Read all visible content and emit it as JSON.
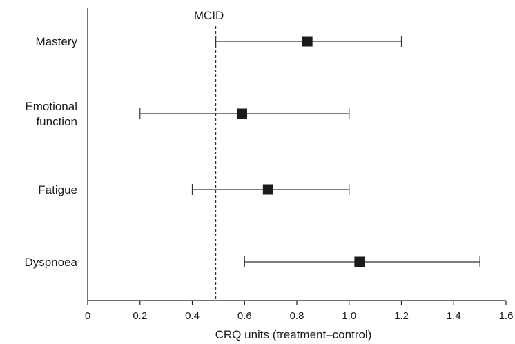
{
  "chart_data": {
    "type": "scatter",
    "subtype": "forest-plot",
    "title": "",
    "xlabel": "CRQ units (treatment–control)",
    "ylabel": "",
    "xlim": [
      0,
      1.6
    ],
    "xticks": [
      "0",
      "0.2",
      "0.4",
      "0.6",
      "0.8",
      "1.0",
      "1.2",
      "1.4",
      "1.6"
    ],
    "grid": false,
    "reference_line": {
      "label": "MCID",
      "x": 0.49,
      "style": "dashed"
    },
    "categories": [
      {
        "lines": [
          "Mastery"
        ],
        "estimate": 0.84,
        "ci_low": 0.49,
        "ci_high": 1.2
      },
      {
        "lines": [
          "Emotional",
          "function"
        ],
        "estimate": 0.59,
        "ci_low": 0.2,
        "ci_high": 1.0
      },
      {
        "lines": [
          "Fatigue"
        ],
        "estimate": 0.69,
        "ci_low": 0.4,
        "ci_high": 1.0
      },
      {
        "lines": [
          "Dyspnoea"
        ],
        "estimate": 1.04,
        "ci_low": 0.6,
        "ci_high": 1.5
      }
    ],
    "colors": {
      "ink": "#1a1a1a",
      "background": "#ffffff"
    }
  }
}
